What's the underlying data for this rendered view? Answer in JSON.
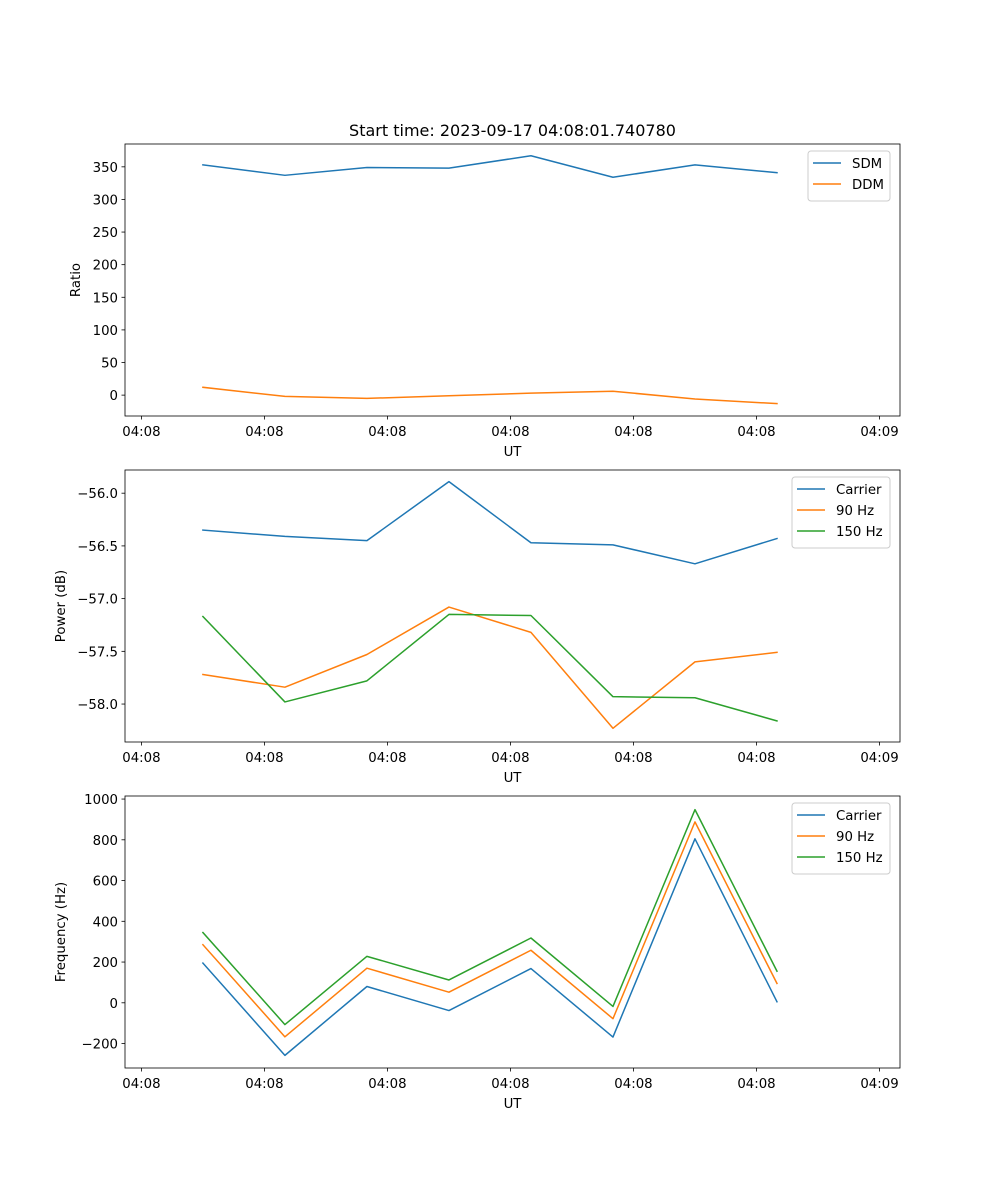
{
  "chart_data": [
    {
      "type": "line",
      "title": "Start time: 2023-09-17 04:08:01.740780",
      "xlabel": "UT",
      "ylabel": "Ratio",
      "ylim": [
        -32,
        385
      ],
      "yticks": [
        0,
        50,
        100,
        150,
        200,
        250,
        300,
        350
      ],
      "xlim": [
        -0.95,
        8.5
      ],
      "xticks": [
        -0.75,
        0.75,
        2.25,
        3.75,
        5.25,
        6.75,
        8.25
      ],
      "xtick_labels": [
        "04:08",
        "04:08",
        "04:08",
        "04:08",
        "04:08",
        "04:08",
        "04:09"
      ],
      "x": [
        0,
        1,
        2,
        3,
        4,
        5,
        6,
        7
      ],
      "legend_loc": "upper right",
      "series": [
        {
          "name": "SDM",
          "color": "#1f77b4",
          "values": [
            353,
            337,
            349,
            348,
            367,
            334,
            353,
            341
          ]
        },
        {
          "name": "DDM",
          "color": "#ff7f0e",
          "values": [
            12,
            -2,
            -5,
            -1,
            3,
            6,
            -6,
            -13
          ]
        }
      ]
    },
    {
      "type": "line",
      "title": "",
      "xlabel": "UT",
      "ylabel": "Power (dB)",
      "ylim": [
        -58.36,
        -55.78
      ],
      "yticks": [
        -58.0,
        -57.5,
        -57.0,
        -56.5,
        -56.0
      ],
      "ytick_labels": [
        "−58.0",
        "−57.5",
        "−57.0",
        "−56.5",
        "−56.0"
      ],
      "xlim": [
        -0.95,
        8.5
      ],
      "xticks": [
        -0.75,
        0.75,
        2.25,
        3.75,
        5.25,
        6.75,
        8.25
      ],
      "xtick_labels": [
        "04:08",
        "04:08",
        "04:08",
        "04:08",
        "04:08",
        "04:08",
        "04:09"
      ],
      "x": [
        0,
        1,
        2,
        3,
        4,
        5,
        6,
        7
      ],
      "legend_loc": "upper right",
      "series": [
        {
          "name": "Carrier",
          "color": "#1f77b4",
          "values": [
            -56.35,
            -56.41,
            -56.45,
            -55.89,
            -56.47,
            -56.49,
            -56.67,
            -56.43
          ]
        },
        {
          "name": "90 Hz",
          "color": "#ff7f0e",
          "values": [
            -57.72,
            -57.84,
            -57.53,
            -57.08,
            -57.32,
            -58.23,
            -57.6,
            -57.51
          ]
        },
        {
          "name": "150 Hz",
          "color": "#2ca02c",
          "values": [
            -57.17,
            -57.98,
            -57.78,
            -57.15,
            -57.16,
            -57.93,
            -57.94,
            -58.16
          ]
        }
      ]
    },
    {
      "type": "line",
      "title": "",
      "xlabel": "UT",
      "ylabel": "Frequency (Hz)",
      "ylim": [
        -320,
        1015
      ],
      "yticks": [
        -200,
        0,
        200,
        400,
        600,
        800,
        1000
      ],
      "ytick_labels": [
        "−200",
        "0",
        "200",
        "400",
        "600",
        "800",
        "1000"
      ],
      "xlim": [
        -0.95,
        8.5
      ],
      "xticks": [
        -0.75,
        0.75,
        2.25,
        3.75,
        5.25,
        6.75,
        8.25
      ],
      "xtick_labels": [
        "04:08",
        "04:08",
        "04:08",
        "04:08",
        "04:08",
        "04:08",
        "04:09"
      ],
      "x": [
        0,
        1,
        2,
        3,
        4,
        5,
        6,
        7
      ],
      "legend_loc": "upper right",
      "series": [
        {
          "name": "Carrier",
          "color": "#1f77b4",
          "values": [
            195,
            -258,
            80,
            -38,
            168,
            -168,
            805,
            5
          ]
        },
        {
          "name": "90 Hz",
          "color": "#ff7f0e",
          "values": [
            285,
            -167,
            170,
            52,
            258,
            -78,
            888,
            95
          ]
        },
        {
          "name": "150 Hz",
          "color": "#2ca02c",
          "values": [
            345,
            -107,
            228,
            112,
            318,
            -18,
            948,
            155
          ]
        }
      ]
    }
  ]
}
